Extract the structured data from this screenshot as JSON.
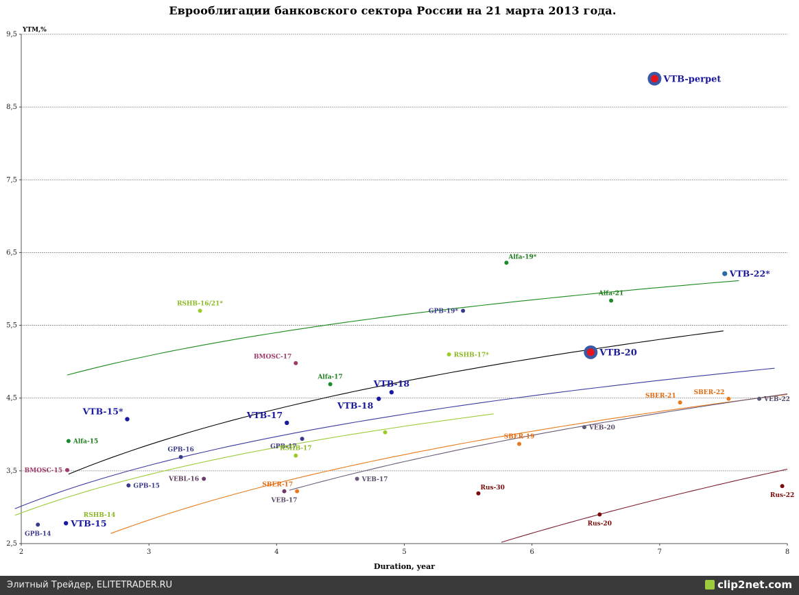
{
  "chart_data": {
    "type": "scatter",
    "title": "Еврооблигации банковского сектора России на 21 марта 2013 года.",
    "xlabel": "Duration, year",
    "ylabel": "YTM,%",
    "xlim": [
      2,
      8
    ],
    "ylim": [
      2.5,
      9.5
    ],
    "x_ticks": [
      "2",
      "3",
      "4",
      "5",
      "6",
      "7",
      "8"
    ],
    "y_ticks": [
      "2,5",
      "3,5",
      "4,5",
      "5,5",
      "6,5",
      "7,5",
      "8,5",
      "9,5"
    ],
    "grid": "horizontal",
    "points": [
      {
        "label": "VTB-perpet",
        "x": 6.96,
        "y": 8.89,
        "color": "#e8141c",
        "size": "highlight",
        "label_color": "#1a1a9a",
        "label_pos": "right"
      },
      {
        "label": "VTB-20",
        "x": 6.46,
        "y": 5.13,
        "color": "#e8141c",
        "size": "highlight",
        "label_color": "#1a1a9a",
        "label_pos": "right"
      },
      {
        "label": "VTB-22*",
        "x": 7.51,
        "y": 6.21,
        "color": "#2a6aa8",
        "size": "large",
        "label_color": "#1a1a9a",
        "label_pos": "right"
      },
      {
        "label": "VTB-15*",
        "x": 2.83,
        "y": 4.21,
        "color": "#1a1aa0",
        "size": "medium",
        "label_color": "#1a1aa0",
        "label_pos": "above-left"
      },
      {
        "label": "VTB-15",
        "x": 2.35,
        "y": 2.78,
        "color": "#1a1aa0",
        "size": "medium",
        "label_color": "#1a1aa0",
        "label_pos": "right"
      },
      {
        "label": "VTB-17",
        "x": 4.08,
        "y": 4.16,
        "color": "#1a1aa0",
        "size": "medium",
        "label_color": "#1a1aa0",
        "label_pos": "above-left"
      },
      {
        "label": "VTB-18",
        "x": 4.8,
        "y": 4.49,
        "color": "#1a1aa0",
        "size": "medium",
        "label_color": "#1a1aa0",
        "label_pos": "below-left"
      },
      {
        "label": "VTB-18",
        "x": 4.9,
        "y": 4.58,
        "color": "#1a1aa0",
        "size": "medium",
        "label_color": "#1a1aa0",
        "label_pos": "above"
      },
      {
        "label": "Alfa-19*",
        "x": 5.8,
        "y": 6.36,
        "color": "#1a8a2a",
        "size": "small",
        "label_color": "#1a7a1a",
        "label_pos": "above-right"
      },
      {
        "label": "Alfa-21",
        "x": 6.62,
        "y": 5.84,
        "color": "#1a8a2a",
        "size": "small",
        "label_color": "#1a7a1a",
        "label_pos": "above"
      },
      {
        "label": "Alfa-17",
        "x": 4.42,
        "y": 4.69,
        "color": "#1a8a2a",
        "size": "small",
        "label_color": "#1a7a1a",
        "label_pos": "above"
      },
      {
        "label": "Alfa-15",
        "x": 2.37,
        "y": 3.91,
        "color": "#1a8a2a",
        "size": "small",
        "label_color": "#1a7a1a",
        "label_pos": "right"
      },
      {
        "label": "GPB-19*",
        "x": 5.46,
        "y": 5.7,
        "color": "#3a3a8a",
        "size": "small",
        "label_color": "#3a3a8a",
        "label_pos": "left"
      },
      {
        "label": "GPB-17",
        "x": 4.2,
        "y": 3.94,
        "color": "#3a3a8a",
        "size": "small",
        "label_color": "#3a3a8a",
        "label_pos": "below-left"
      },
      {
        "label": "GPB-16",
        "x": 3.25,
        "y": 3.69,
        "color": "#3a3a8a",
        "size": "small",
        "label_color": "#3a3a8a",
        "label_pos": "above"
      },
      {
        "label": "GPB-15",
        "x": 2.84,
        "y": 3.3,
        "color": "#3a3a8a",
        "size": "small",
        "label_color": "#3a3a8a",
        "label_pos": "right"
      },
      {
        "label": "GPB-14",
        "x": 2.13,
        "y": 2.76,
        "color": "#3a3a8a",
        "size": "small",
        "label_color": "#3a3a8a",
        "label_pos": "below"
      },
      {
        "label": "RSHB-16/21*",
        "x": 3.4,
        "y": 5.7,
        "color": "#9ccc2a",
        "size": "small",
        "label_color": "#8ab820",
        "label_pos": "above"
      },
      {
        "label": "RSHB-17*",
        "x": 5.35,
        "y": 5.1,
        "color": "#9ccc2a",
        "size": "small",
        "label_color": "#8ab820",
        "label_pos": "right"
      },
      {
        "label": "RSHB-17",
        "x": 4.15,
        "y": 3.71,
        "color": "#9ccc2a",
        "size": "small",
        "label_color": "#8ab820",
        "label_pos": "above"
      },
      {
        "label": "",
        "x": 4.85,
        "y": 4.03,
        "color": "#9ccc2a",
        "size": "small",
        "label_color": "#8ab820",
        "label_pos": "none"
      },
      {
        "label": "RSHB-14",
        "x": 2.45,
        "y": 2.9,
        "color": "#9ccc2a",
        "size": "none",
        "label_color": "#8ab820",
        "label_pos": "right"
      },
      {
        "label": "BMOSC-17",
        "x": 4.15,
        "y": 4.98,
        "color": "#a03a6a",
        "size": "small",
        "label_color": "#a03a6a",
        "label_pos": "above-left"
      },
      {
        "label": "BMOSC-15",
        "x": 2.36,
        "y": 3.51,
        "color": "#a03a6a",
        "size": "small",
        "label_color": "#a03a6a",
        "label_pos": "left"
      },
      {
        "label": "VEBL-16",
        "x": 3.43,
        "y": 3.39,
        "color": "#6a3a6a",
        "size": "small",
        "label_color": "#5a3a5a",
        "label_pos": "left"
      },
      {
        "label": "VEB-17",
        "x": 4.63,
        "y": 3.39,
        "color": "#6a5a7a",
        "size": "small",
        "label_color": "#5a4a6a",
        "label_pos": "right"
      },
      {
        "label": "VEB-17",
        "x": 4.06,
        "y": 3.22,
        "color": "#6a3a6a",
        "size": "small",
        "label_color": "#5a4a6a",
        "label_pos": "below"
      },
      {
        "label": "VEB-20",
        "x": 6.41,
        "y": 4.1,
        "color": "#5a5a7a",
        "size": "small",
        "label_color": "#5a4a6a",
        "label_pos": "right"
      },
      {
        "label": "VEB-22",
        "x": 7.78,
        "y": 4.49,
        "color": "#5a5a7a",
        "size": "small",
        "label_color": "#5a4a6a",
        "label_pos": "right"
      },
      {
        "label": "SBER-17",
        "x": 4.16,
        "y": 3.22,
        "color": "#e87a1a",
        "size": "small",
        "label_color": "#e06a10",
        "label_pos": "above-left"
      },
      {
        "label": "SBER-19",
        "x": 5.9,
        "y": 3.87,
        "color": "#e87a1a",
        "size": "small",
        "label_color": "#e06a10",
        "label_pos": "above"
      },
      {
        "label": "SBER-21",
        "x": 7.16,
        "y": 4.44,
        "color": "#e87a1a",
        "size": "small",
        "label_color": "#e06a10",
        "label_pos": "above-left"
      },
      {
        "label": "SBER-22",
        "x": 7.54,
        "y": 4.49,
        "color": "#e87a1a",
        "size": "small",
        "label_color": "#e06a10",
        "label_pos": "above-left"
      },
      {
        "label": "Rus-30",
        "x": 5.58,
        "y": 3.19,
        "color": "#7a0a0a",
        "size": "small",
        "label_color": "#7a0a0a",
        "label_pos": "above-right"
      },
      {
        "label": "Rus-20",
        "x": 6.53,
        "y": 2.9,
        "color": "#7a0a0a",
        "size": "small",
        "label_color": "#7a0a0a",
        "label_pos": "below"
      },
      {
        "label": "Rus-22",
        "x": 7.96,
        "y": 3.29,
        "color": "#7a0a0a",
        "size": "small",
        "label_color": "#7a0a0a",
        "label_pos": "below"
      }
    ],
    "trendlines": [
      {
        "color": "#1a8a1a",
        "x_range": [
          2.36,
          7.62
        ],
        "coeffs": [
          3.866,
          1.107
        ]
      },
      {
        "color": "#000000",
        "x_range": [
          2.37,
          7.5
        ],
        "coeffs": [
          1.98,
          1.709
        ]
      },
      {
        "color": "#3a3aa0",
        "x_range": [
          1.95,
          7.9
        ],
        "coeffs": [
          2.058,
          1.38
        ]
      },
      {
        "color": "#9ccc3a",
        "x_range": [
          1.95,
          5.7
        ],
        "coeffs": [
          2.02,
          1.3
        ]
      },
      {
        "color": "#e87a1a",
        "x_range": [
          2.7,
          8.0
        ],
        "coeffs": [
          0.89,
          1.76
        ]
      },
      {
        "color": "#6a5a7a",
        "x_range": [
          4.1,
          8.0
        ],
        "coeffs": [
          0.44,
          1.98
        ]
      },
      {
        "color": "#7a1a2a",
        "x_range": [
          4.8,
          8.0
        ],
        "coeffs": [
          -2.84,
          3.06
        ]
      }
    ]
  },
  "footer": {
    "source": "Элитный Трейдер, ELITETRADER.RU",
    "brand": "clip2net.com"
  }
}
